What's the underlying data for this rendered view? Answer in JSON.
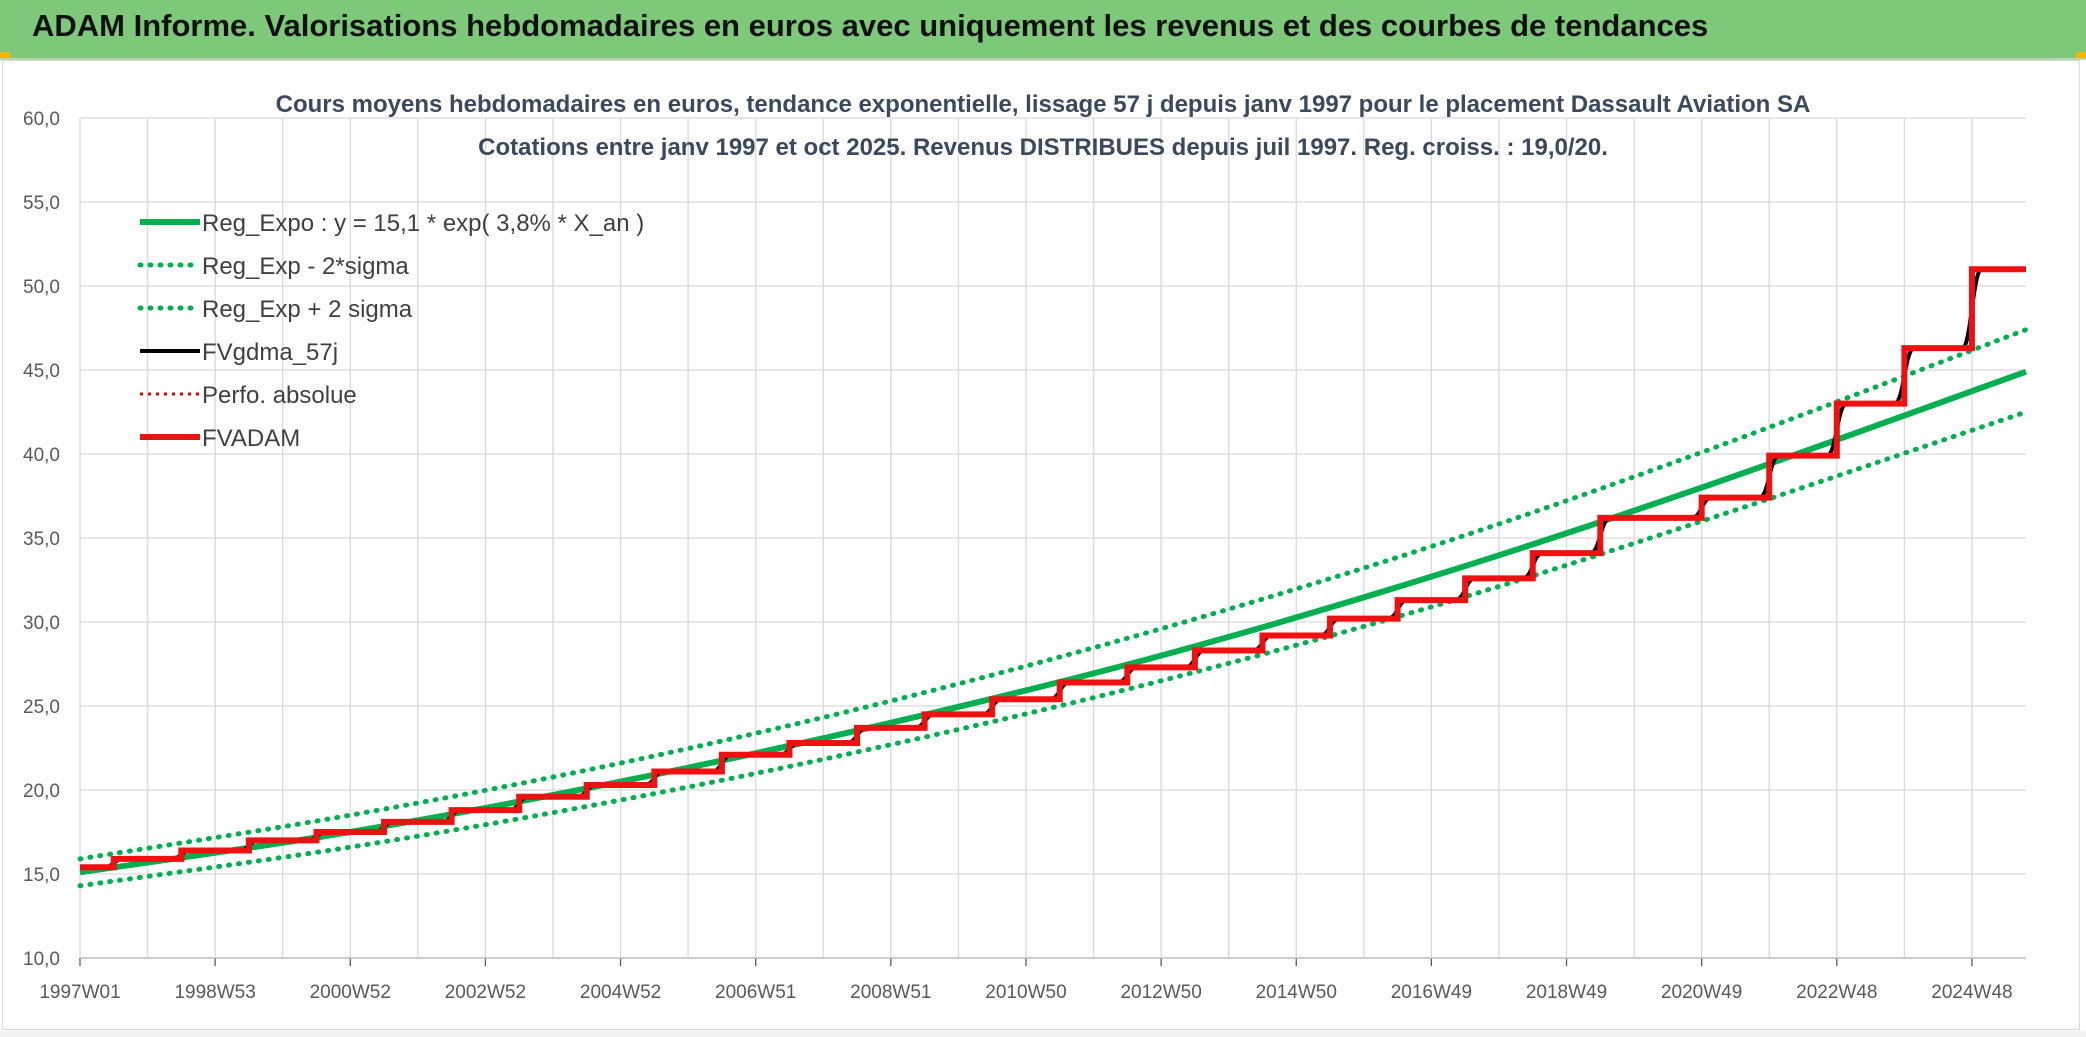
{
  "header": {
    "title": "ADAM Informe. Valorisations hebdomadaires en euros avec uniquement les revenus et des courbes de tendances"
  },
  "chart_data": {
    "type": "line",
    "title": "Cours moyens hebdomadaires en euros, tendance exponentielle, lissage 57 j depuis janv 1997 pour le placement Dassault Aviation SA",
    "subtitle": "Cotations entre janv 1997 et oct 2025. Revenus DISTRIBUES depuis juil 1997. Reg. croiss. : 19,0/20.",
    "xlabel": "",
    "ylabel": "",
    "ylim": [
      10,
      60
    ],
    "yticks": [
      10,
      15,
      20,
      25,
      30,
      35,
      40,
      45,
      50,
      55,
      60
    ],
    "ytick_labels": [
      "10,0",
      "15,0",
      "20,0",
      "25,0",
      "30,0",
      "35,0",
      "40,0",
      "45,0",
      "50,0",
      "55,0",
      "60,0"
    ],
    "x_range_years": [
      1997.0,
      2025.8
    ],
    "xtick_years": [
      1997.0,
      1999.0,
      2001.0,
      2003.0,
      2005.0,
      2007.0,
      2009.0,
      2011.0,
      2013.0,
      2015.0,
      2017.0,
      2019.0,
      2021.0,
      2023.0,
      2025.0
    ],
    "xtick_labels": [
      "1997W01",
      "1998W53",
      "2000W52",
      "2002W52",
      "2004W52",
      "2006W51",
      "2008W51",
      "2010W50",
      "2012W50",
      "2014W50",
      "2016W49",
      "2018W49",
      "2020W49",
      "2022W48",
      "2024W48"
    ],
    "grid": true,
    "legend_position": "top-left",
    "series": [
      {
        "name": "Reg_Expo : y = 15,1 * exp( 3,8% *  X_an )",
        "color": "#00b050",
        "style": "solid-thick",
        "x": [
          1997.0,
          2001.0,
          2005.0,
          2009.0,
          2013.0,
          2017.0,
          2021.0,
          2025.8
        ],
        "y": [
          15.1,
          17.5,
          20.5,
          24.0,
          28.0,
          32.7,
          38.0,
          44.9
        ]
      },
      {
        "name": "Reg_Exp - 2*sigma",
        "color": "#00b050",
        "style": "dotted",
        "x": [
          1997.0,
          2001.0,
          2005.0,
          2009.0,
          2013.0,
          2017.0,
          2021.0,
          2025.8
        ],
        "y": [
          14.3,
          16.6,
          19.4,
          22.7,
          26.5,
          30.9,
          36.0,
          42.5
        ]
      },
      {
        "name": "Reg_Exp + 2 sigma",
        "color": "#00b050",
        "style": "dotted",
        "x": [
          1997.0,
          2001.0,
          2005.0,
          2009.0,
          2013.0,
          2017.0,
          2021.0,
          2025.8
        ],
        "y": [
          15.9,
          18.5,
          21.6,
          25.3,
          29.6,
          34.5,
          40.1,
          47.4
        ]
      },
      {
        "name": "FVgdma_57j",
        "color": "#000000",
        "style": "smooth-steps"
      },
      {
        "name": "Perfo. absolue",
        "color": "#e00000",
        "style": "dotted-thin"
      },
      {
        "name": "FVADAM",
        "color": "#ee1111",
        "style": "steps-thick",
        "steps": [
          [
            1997.0,
            15.4
          ],
          [
            1997.5,
            15.9
          ],
          [
            1998.5,
            16.4
          ],
          [
            1999.5,
            17.0
          ],
          [
            2000.5,
            17.5
          ],
          [
            2001.5,
            18.1
          ],
          [
            2002.5,
            18.8
          ],
          [
            2003.5,
            19.6
          ],
          [
            2004.5,
            20.3
          ],
          [
            2005.5,
            21.1
          ],
          [
            2006.5,
            22.1
          ],
          [
            2007.5,
            22.8
          ],
          [
            2008.5,
            23.7
          ],
          [
            2009.5,
            24.5
          ],
          [
            2010.5,
            25.4
          ],
          [
            2011.5,
            26.4
          ],
          [
            2012.5,
            27.3
          ],
          [
            2013.5,
            28.3
          ],
          [
            2014.5,
            29.2
          ],
          [
            2015.5,
            30.2
          ],
          [
            2016.5,
            31.3
          ],
          [
            2017.5,
            32.6
          ],
          [
            2018.5,
            34.1
          ],
          [
            2019.5,
            36.2
          ],
          [
            2021.0,
            37.4
          ],
          [
            2022.0,
            39.9
          ],
          [
            2023.0,
            43.0
          ],
          [
            2024.0,
            46.3
          ],
          [
            2025.0,
            51.0
          ]
        ],
        "x_end": 2025.8
      }
    ]
  }
}
